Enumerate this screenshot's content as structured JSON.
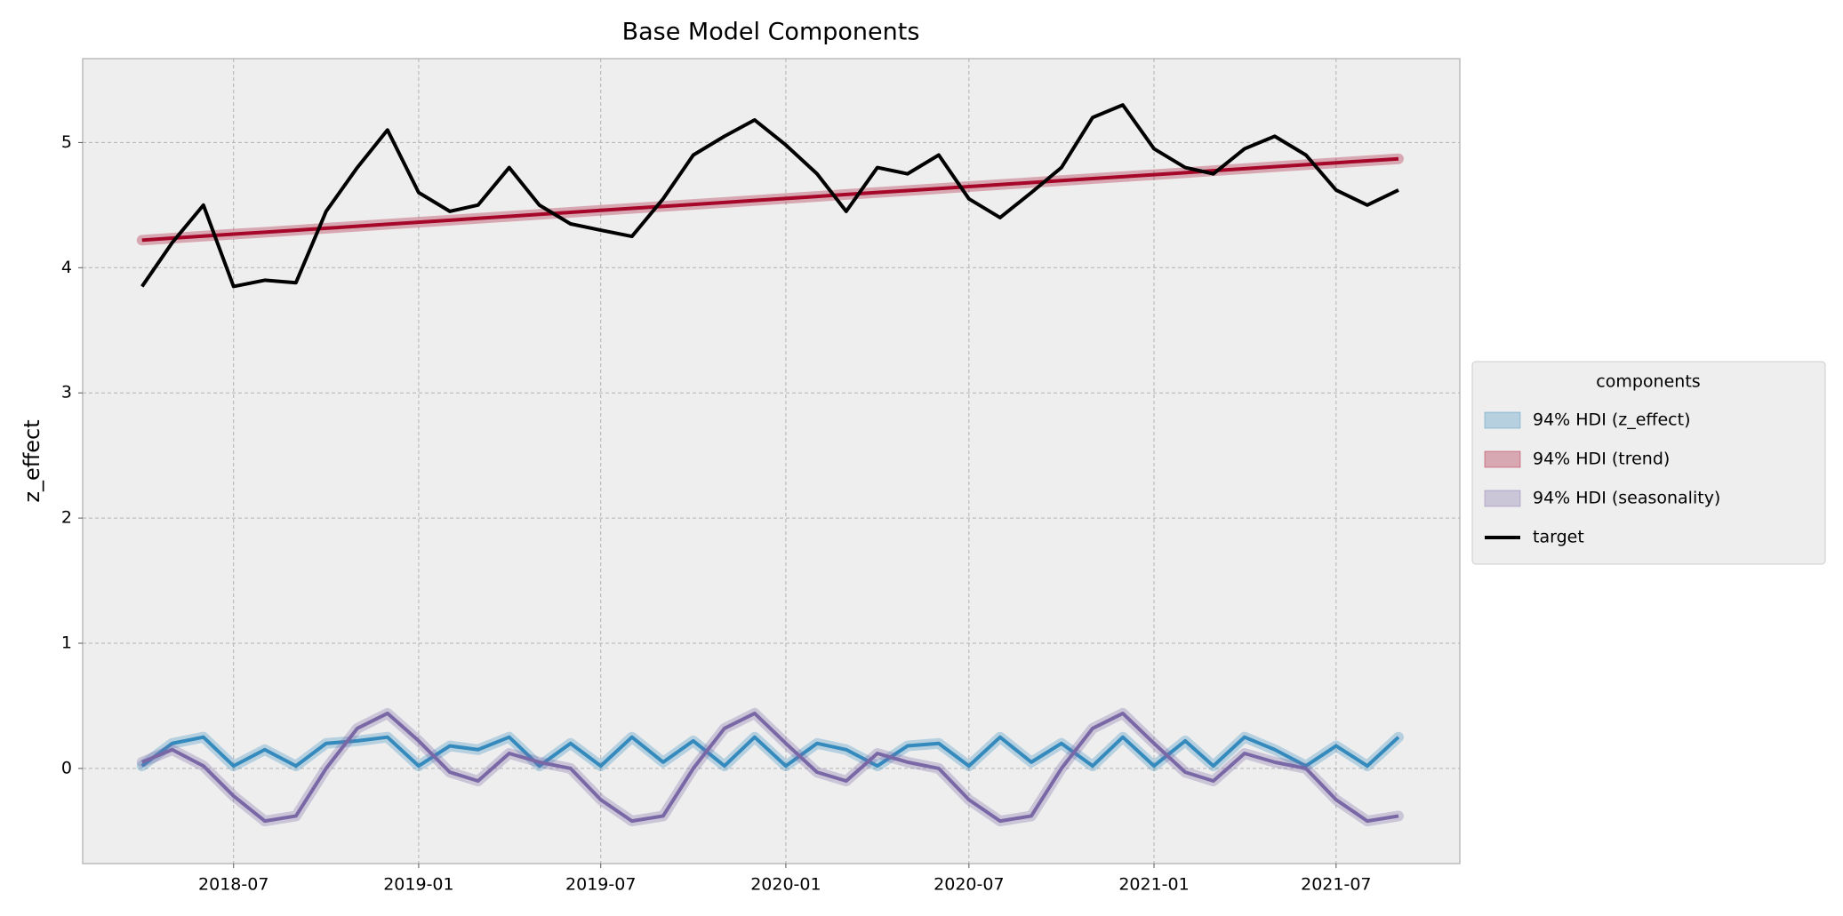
{
  "chart_data": {
    "type": "line",
    "title": "Base Model Components",
    "y_label": "z_effect",
    "legend_title": "components",
    "legend": "center right outside",
    "grid": true,
    "x": [
      "2018-04",
      "2018-05",
      "2018-06",
      "2018-07",
      "2018-08",
      "2018-09",
      "2018-10",
      "2018-11",
      "2018-12",
      "2019-01",
      "2019-02",
      "2019-03",
      "2019-04",
      "2019-05",
      "2019-06",
      "2019-07",
      "2019-08",
      "2019-09",
      "2019-10",
      "2019-11",
      "2019-12",
      "2020-01",
      "2020-02",
      "2020-03",
      "2020-04",
      "2020-05",
      "2020-06",
      "2020-07",
      "2020-08",
      "2020-09",
      "2020-10",
      "2020-11",
      "2020-12",
      "2021-01",
      "2021-02",
      "2021-03",
      "2021-04",
      "2021-05",
      "2021-06",
      "2021-07",
      "2021-08",
      "2021-09"
    ],
    "xlim": [
      "2018-02",
      "2021-11"
    ],
    "xticks": [
      "2018-07",
      "2019-01",
      "2019-07",
      "2020-01",
      "2020-07",
      "2021-01",
      "2021-07"
    ],
    "ylim": [
      -0.76,
      5.67
    ],
    "yticks": [
      0,
      1,
      2,
      3,
      4,
      5
    ],
    "series": [
      {
        "name": "94% HDI (z_effect)",
        "color": "#348abd",
        "band": true,
        "values": [
          0.02,
          0.2,
          0.25,
          0.02,
          0.15,
          0.02,
          0.2,
          0.22,
          0.25,
          0.02,
          0.18,
          0.15,
          0.25,
          0.02,
          0.2,
          0.02,
          0.25,
          0.05,
          0.22,
          0.02,
          0.25,
          0.02,
          0.2,
          0.15,
          0.02,
          0.18,
          0.2,
          0.02,
          0.25,
          0.05,
          0.2,
          0.02,
          0.25,
          0.02,
          0.22,
          0.02,
          0.25,
          0.15,
          0.02,
          0.18,
          0.02,
          0.25
        ]
      },
      {
        "name": "94% HDI (trend)",
        "color": "#a60628",
        "band": true,
        "values": [
          4.22,
          4.236,
          4.252,
          4.268,
          4.283,
          4.299,
          4.315,
          4.331,
          4.347,
          4.363,
          4.379,
          4.394,
          4.41,
          4.426,
          4.442,
          4.458,
          4.474,
          4.49,
          4.505,
          4.521,
          4.537,
          4.553,
          4.569,
          4.585,
          4.601,
          4.616,
          4.632,
          4.648,
          4.664,
          4.68,
          4.696,
          4.712,
          4.727,
          4.743,
          4.759,
          4.775,
          4.791,
          4.807,
          4.823,
          4.838,
          4.854,
          4.87
        ]
      },
      {
        "name": "94% HDI (seasonality)",
        "color": "#7a68a6",
        "band": true,
        "values": [
          0.05,
          0.15,
          0.02,
          -0.22,
          -0.42,
          -0.38,
          0.0,
          0.32,
          0.44,
          0.22,
          -0.03,
          -0.1,
          0.12,
          0.05,
          0.0,
          -0.25,
          -0.42,
          -0.38,
          0.0,
          0.32,
          0.44,
          0.2,
          -0.03,
          -0.1,
          0.12,
          0.05,
          0.0,
          -0.25,
          -0.42,
          -0.38,
          0.0,
          0.32,
          0.44,
          0.2,
          -0.03,
          -0.1,
          0.12,
          0.05,
          0.0,
          -0.25,
          -0.42,
          -0.38
        ]
      },
      {
        "name": "target",
        "color": "#000000",
        "band": false,
        "values": [
          3.85,
          4.2,
          4.5,
          3.85,
          3.9,
          3.88,
          4.45,
          4.8,
          5.1,
          4.6,
          4.45,
          4.5,
          4.8,
          4.5,
          4.35,
          4.3,
          4.25,
          4.55,
          4.9,
          5.05,
          5.18,
          4.98,
          4.75,
          4.45,
          4.8,
          4.75,
          4.9,
          4.55,
          4.4,
          4.6,
          4.8,
          5.2,
          5.3,
          4.95,
          4.8,
          4.75,
          4.95,
          5.05,
          4.9,
          4.62,
          4.5,
          4.62
        ]
      }
    ]
  }
}
